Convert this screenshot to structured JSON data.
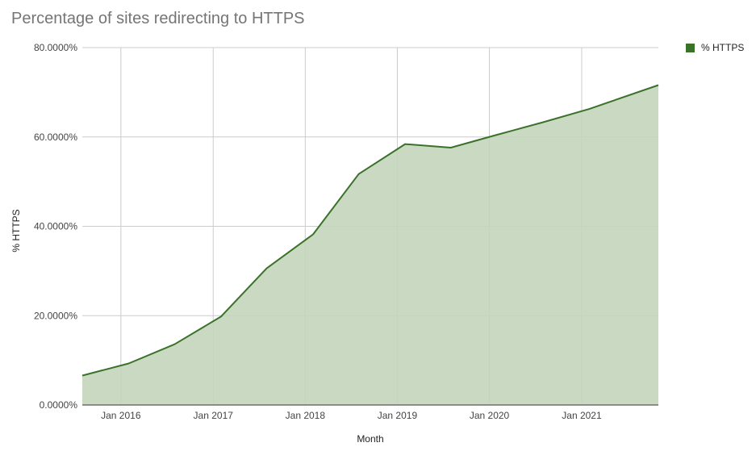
{
  "chart_data": {
    "type": "area",
    "title": "Percentage of sites redirecting to HTTPS",
    "xlabel": "Month",
    "ylabel": "% HTTPS",
    "x_ticks": [
      "Jan 2016",
      "Jan 2017",
      "Jan 2018",
      "Jan 2019",
      "Jan 2020",
      "Jan 2021"
    ],
    "y_ticks": [
      "0.0000%",
      "20.0000%",
      "40.0000%",
      "60.0000%",
      "80.0000%"
    ],
    "ylim": [
      0,
      80
    ],
    "xlim": [
      "2015-08-01",
      "2021-11-01"
    ],
    "grid": true,
    "legend_position": "top-right",
    "series": [
      {
        "name": "% HTTPS",
        "color": "#3a7229",
        "fill": "#c3d5bb",
        "points": [
          {
            "x": "2015-08-01",
            "y": 6.6
          },
          {
            "x": "2016-02-01",
            "y": 9.3
          },
          {
            "x": "2016-08-01",
            "y": 13.6
          },
          {
            "x": "2017-02-01",
            "y": 19.8
          },
          {
            "x": "2017-08-01",
            "y": 30.6
          },
          {
            "x": "2018-02-01",
            "y": 38.2
          },
          {
            "x": "2018-08-01",
            "y": 51.7
          },
          {
            "x": "2019-02-01",
            "y": 58.4
          },
          {
            "x": "2019-08-01",
            "y": 57.6
          },
          {
            "x": "2020-02-01",
            "y": 60.5
          },
          {
            "x": "2020-08-01",
            "y": 63.3
          },
          {
            "x": "2021-02-01",
            "y": 66.3
          },
          {
            "x": "2021-11-01",
            "y": 71.6
          }
        ]
      }
    ]
  }
}
